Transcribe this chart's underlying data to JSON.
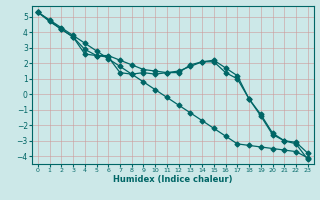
{
  "xlabel": "Humidex (Indice chaleur)",
  "background_color": "#cce8e8",
  "grid_color": "#b0d4d4",
  "line_color": "#006666",
  "xlim": [
    -0.5,
    23.5
  ],
  "ylim": [
    -4.5,
    5.7
  ],
  "yticks": [
    -4,
    -3,
    -2,
    -1,
    0,
    1,
    2,
    3,
    4,
    5
  ],
  "xticks": [
    0,
    1,
    2,
    3,
    4,
    5,
    6,
    7,
    8,
    9,
    10,
    11,
    12,
    13,
    14,
    15,
    16,
    17,
    18,
    19,
    20,
    21,
    22,
    23
  ],
  "series1_x": [
    0,
    1,
    2,
    3,
    4,
    5,
    6,
    7,
    8,
    9,
    10,
    11,
    12,
    13,
    14,
    15,
    16,
    17,
    18,
    19,
    20,
    21,
    22,
    23
  ],
  "series1_y": [
    5.3,
    4.8,
    4.3,
    3.8,
    3.3,
    2.8,
    2.3,
    1.8,
    1.3,
    0.8,
    0.3,
    -0.2,
    -0.7,
    -1.2,
    -1.7,
    -2.2,
    -2.7,
    -3.2,
    -3.3,
    -3.4,
    -3.5,
    -3.6,
    -3.7,
    -4.1
  ],
  "series2_x": [
    0,
    1,
    2,
    3,
    4,
    5,
    6,
    7,
    8,
    9,
    10,
    11,
    12,
    13,
    14,
    15,
    16,
    17,
    18,
    19,
    20,
    21,
    22,
    23
  ],
  "series2_y": [
    5.3,
    4.7,
    4.2,
    3.7,
    2.6,
    2.5,
    2.5,
    2.2,
    1.9,
    1.6,
    1.5,
    1.4,
    1.5,
    1.8,
    2.1,
    2.2,
    1.7,
    1.2,
    -0.3,
    -1.3,
    -2.5,
    -3.0,
    -3.1,
    -3.8
  ],
  "series3_x": [
    0,
    2,
    3,
    4,
    5,
    6,
    7,
    8,
    9,
    10,
    11,
    12,
    13,
    14,
    15,
    16,
    17,
    18,
    19,
    20,
    21,
    22,
    23
  ],
  "series3_y": [
    5.3,
    4.2,
    3.7,
    2.9,
    2.5,
    2.4,
    1.4,
    1.3,
    1.4,
    1.3,
    1.4,
    1.4,
    1.9,
    2.1,
    2.1,
    1.4,
    1.0,
    -0.3,
    -1.4,
    -2.6,
    -3.0,
    -3.2,
    -4.2
  ]
}
